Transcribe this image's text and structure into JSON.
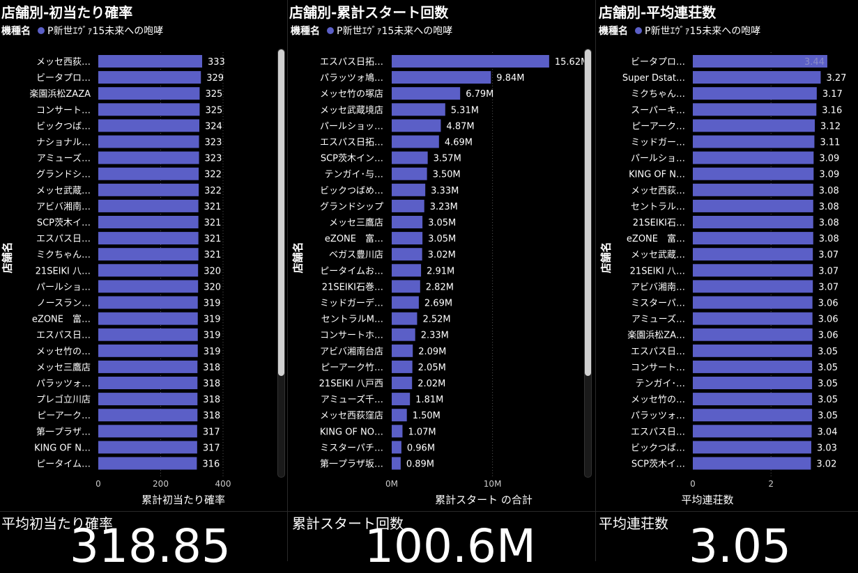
{
  "charts": [
    {
      "title": "店舗別-初当たり確率",
      "legend_label": "機種名",
      "legend_item": "P新世ｴｳﾞｧ15未来への咆哮",
      "ylabel": "店舗名",
      "xlabel": "累計初当たり確率"
    },
    {
      "title": "店舗別-累計スタート回数",
      "legend_label": "機種名",
      "legend_item": "P新世ｴｳﾞｧ15未来への咆哮",
      "ylabel": "店舗名",
      "xlabel": "累計スタート の合計"
    },
    {
      "title": "店舗別-平均連荘数",
      "legend_label": "機種名",
      "legend_item": "P新世ｴｳﾞｧ15未来への咆哮",
      "ylabel": "店舗名",
      "xlabel": "平均連荘数"
    }
  ],
  "cards": [
    {
      "title": "平均初当たり確率",
      "value": "318.85"
    },
    {
      "title": "累計スタート回数",
      "value": "100.6M"
    },
    {
      "title": "平均連荘数",
      "value": "3.05"
    }
  ],
  "colors": {
    "bar": "#5b5fc7",
    "background": "#000000",
    "text": "#ffffff"
  },
  "chart_data": [
    {
      "type": "bar",
      "orientation": "horizontal",
      "title": "店舗別-初当たり確率",
      "xlabel": "累計初当たり確率",
      "ylabel": "店舗名",
      "xlim": [
        0,
        400
      ],
      "xticks": [
        "0",
        "200",
        "400"
      ],
      "legend": [
        "P新世ｴｳﾞｧ15未来への咆哮"
      ],
      "categories": [
        "メッセ西荻…",
        "ビータプロ…",
        "楽園浜松ZAZA",
        "コンサート…",
        "ビックつば…",
        "ナショナル…",
        "アミューズ…",
        "グランドシ…",
        "メッセ武蔵…",
        "アビバ湘南…",
        "SCP茨木イ…",
        "エスパス日…",
        "ミクちゃん…",
        "21SEIKI 八…",
        "パールショ…",
        "ノースラン…",
        "eZONE　富…",
        "エスパス日…",
        "メッセ竹の…",
        "メッセ三鷹店",
        "パラッツォ…",
        "プレゴ立川店",
        "ピーアーク…",
        "第一プラザ…",
        "KING OF N…",
        "ピータイム…"
      ],
      "values": [
        333,
        329,
        325,
        325,
        324,
        323,
        323,
        322,
        322,
        321,
        321,
        321,
        321,
        320,
        320,
        319,
        319,
        319,
        319,
        318,
        318,
        318,
        318,
        317,
        317,
        316
      ],
      "labels": [
        "333",
        "329",
        "325",
        "325",
        "324",
        "323",
        "323",
        "322",
        "322",
        "321",
        "321",
        "321",
        "321",
        "320",
        "320",
        "319",
        "319",
        "319",
        "319",
        "318",
        "318",
        "318",
        "318",
        "317",
        "317",
        "316"
      ]
    },
    {
      "type": "bar",
      "orientation": "horizontal",
      "title": "店舗別-累計スタート回数",
      "xlabel": "累計スタート の合計",
      "ylabel": "店舗名",
      "xlim": [
        0,
        19.5
      ],
      "xticks": [
        "0M",
        "10M"
      ],
      "legend": [
        "P新世ｴｳﾞｧ15未来への咆哮"
      ],
      "categories": [
        "エスパス日拓…",
        "パラッツォ鳩…",
        "メッセ竹の塚店",
        "メッセ武蔵境店",
        "パールショッ…",
        "エスパス日拓…",
        "SCP茨木イン…",
        "テンガイ･与…",
        "ビックつばめ…",
        "グランドシップ",
        "メッセ三鷹店",
        "eZONE　富…",
        "ベガス豊川店",
        "ピータイムお…",
        "21SEIKI石巻…",
        "ミッドガーデ…",
        "セントラルM…",
        "コンサートホ…",
        "アビバ湘南台店",
        "ピーアーク竹…",
        "21SEIKI 八戸西",
        "アミューズ千…",
        "メッセ西荻窪店",
        "KING OF NO…",
        "ミスターパチ…",
        "第一プラザ坂…"
      ],
      "values": [
        15.62,
        9.84,
        6.79,
        5.31,
        4.87,
        4.69,
        3.57,
        3.5,
        3.33,
        3.23,
        3.05,
        3.05,
        3.02,
        2.91,
        2.82,
        2.69,
        2.52,
        2.33,
        2.09,
        2.05,
        2.02,
        1.81,
        1.5,
        1.07,
        0.96,
        0.89
      ],
      "labels": [
        "15.62M",
        "9.84M",
        "6.79M",
        "5.31M",
        "4.87M",
        "4.69M",
        "3.57M",
        "3.50M",
        "3.33M",
        "3.23M",
        "3.05M",
        "3.05M",
        "3.02M",
        "2.91M",
        "2.82M",
        "2.69M",
        "2.52M",
        "2.33M",
        "2.09M",
        "2.05M",
        "2.02M",
        "1.81M",
        "1.50M",
        "1.07M",
        "0.96M",
        "0.89M"
      ]
    },
    {
      "type": "bar",
      "orientation": "horizontal",
      "title": "店舗別-平均連荘数",
      "xlabel": "平均連荘数",
      "ylabel": "店舗名",
      "xlim": [
        0,
        4.1
      ],
      "xticks": [
        "0",
        "2"
      ],
      "legend": [
        "P新世ｴｳﾞｧ15未来への咆哮"
      ],
      "categories": [
        "ビータプロ…",
        "Super Dstat…",
        "ミクちゃん…",
        "スーパーキ…",
        "ピーアーク…",
        "ミッドガー…",
        "パールショ…",
        "KING OF N…",
        "メッセ西荻…",
        "セントラル…",
        "21SEIKI石…",
        "eZONE　富…",
        "メッセ武蔵…",
        "21SEIKI 八…",
        "アビバ湘南…",
        "ミスターパ…",
        "アミューズ…",
        "楽園浜松ZA…",
        "エスパス日…",
        "コンサート…",
        "テンガイ･…",
        "メッセ竹の…",
        "パラッツォ…",
        "エスパス日…",
        "ビックつば…",
        "SCP茨木イ…"
      ],
      "values": [
        3.44,
        3.27,
        3.17,
        3.16,
        3.12,
        3.11,
        3.09,
        3.09,
        3.08,
        3.08,
        3.08,
        3.08,
        3.07,
        3.07,
        3.07,
        3.06,
        3.06,
        3.06,
        3.05,
        3.05,
        3.05,
        3.05,
        3.05,
        3.04,
        3.03,
        3.02
      ],
      "labels": [
        "3.44",
        "3.27",
        "3.17",
        "3.16",
        "3.12",
        "3.11",
        "3.09",
        "3.09",
        "3.08",
        "3.08",
        "3.08",
        "3.08",
        "3.07",
        "3.07",
        "3.07",
        "3.06",
        "3.06",
        "3.06",
        "3.05",
        "3.05",
        "3.05",
        "3.05",
        "3.05",
        "3.04",
        "3.03",
        "3.02"
      ]
    }
  ]
}
